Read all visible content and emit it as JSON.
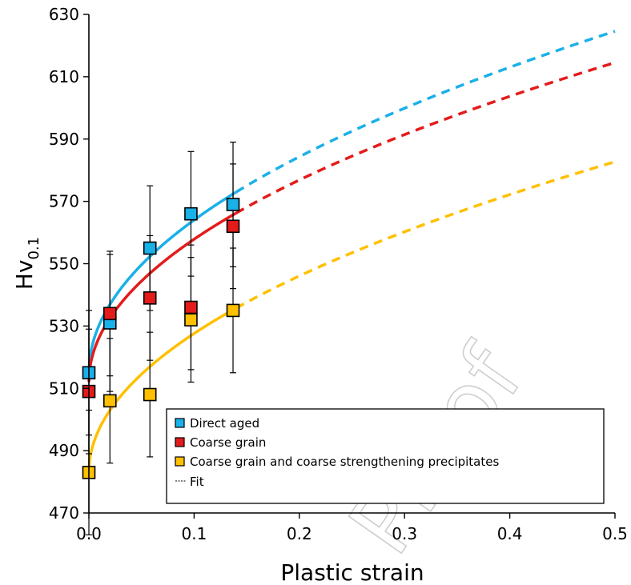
{
  "chart_data": {
    "type": "line",
    "xlabel": "Plastic strain",
    "ylabel_main": "Hv",
    "ylabel_sub": "0.1",
    "xlim": [
      0,
      0.5
    ],
    "ylim": [
      470,
      630
    ],
    "x_ticks": [
      0,
      0.1,
      0.2,
      0.3,
      0.4,
      0.5
    ],
    "x_tick_labels": [
      "0.0",
      "0.1",
      "0.2",
      "0.3",
      "0.4",
      "0.5"
    ],
    "y_ticks": [
      470,
      490,
      510,
      530,
      550,
      570,
      590,
      610,
      630
    ],
    "y_tick_labels": [
      "470",
      "490",
      "510",
      "530",
      "550",
      "570",
      "590",
      "610",
      "630"
    ],
    "grid": "none",
    "legend_position": "bottom-right",
    "fit_solid_until": 0.14,
    "series": [
      {
        "name": "Direct aged",
        "color": "#1ab0e8",
        "x": [
          0.0,
          0.02,
          0.058,
          0.097,
          0.137
        ],
        "y": [
          515,
          531,
          555,
          566,
          569
        ],
        "err": [
          20,
          22,
          20,
          20,
          20
        ],
        "fit": {
          "a": 515,
          "b": 155,
          "n": 0.5
        }
      },
      {
        "name": "Coarse grain",
        "color": "#e41b1b",
        "x": [
          0.0,
          0.02,
          0.058,
          0.097,
          0.137
        ],
        "y": [
          509,
          534,
          539,
          536,
          562
        ],
        "err": [
          20,
          20,
          20,
          20,
          20
        ],
        "fit": {
          "a": 512,
          "b": 145,
          "n": 0.5
        }
      },
      {
        "name": "Coarse grain and coarse strengthening precipitates",
        "color": "#ffc000",
        "x": [
          0.0,
          0.02,
          0.058,
          0.097,
          0.137
        ],
        "y": [
          483,
          506,
          508,
          532,
          535
        ],
        "err": [
          20,
          20,
          20,
          20,
          20
        ],
        "fit": {
          "a": 483,
          "b": 141,
          "n": 0.5
        }
      }
    ],
    "legend": {
      "fit_label": "Fit"
    },
    "watermark": "Proof"
  }
}
